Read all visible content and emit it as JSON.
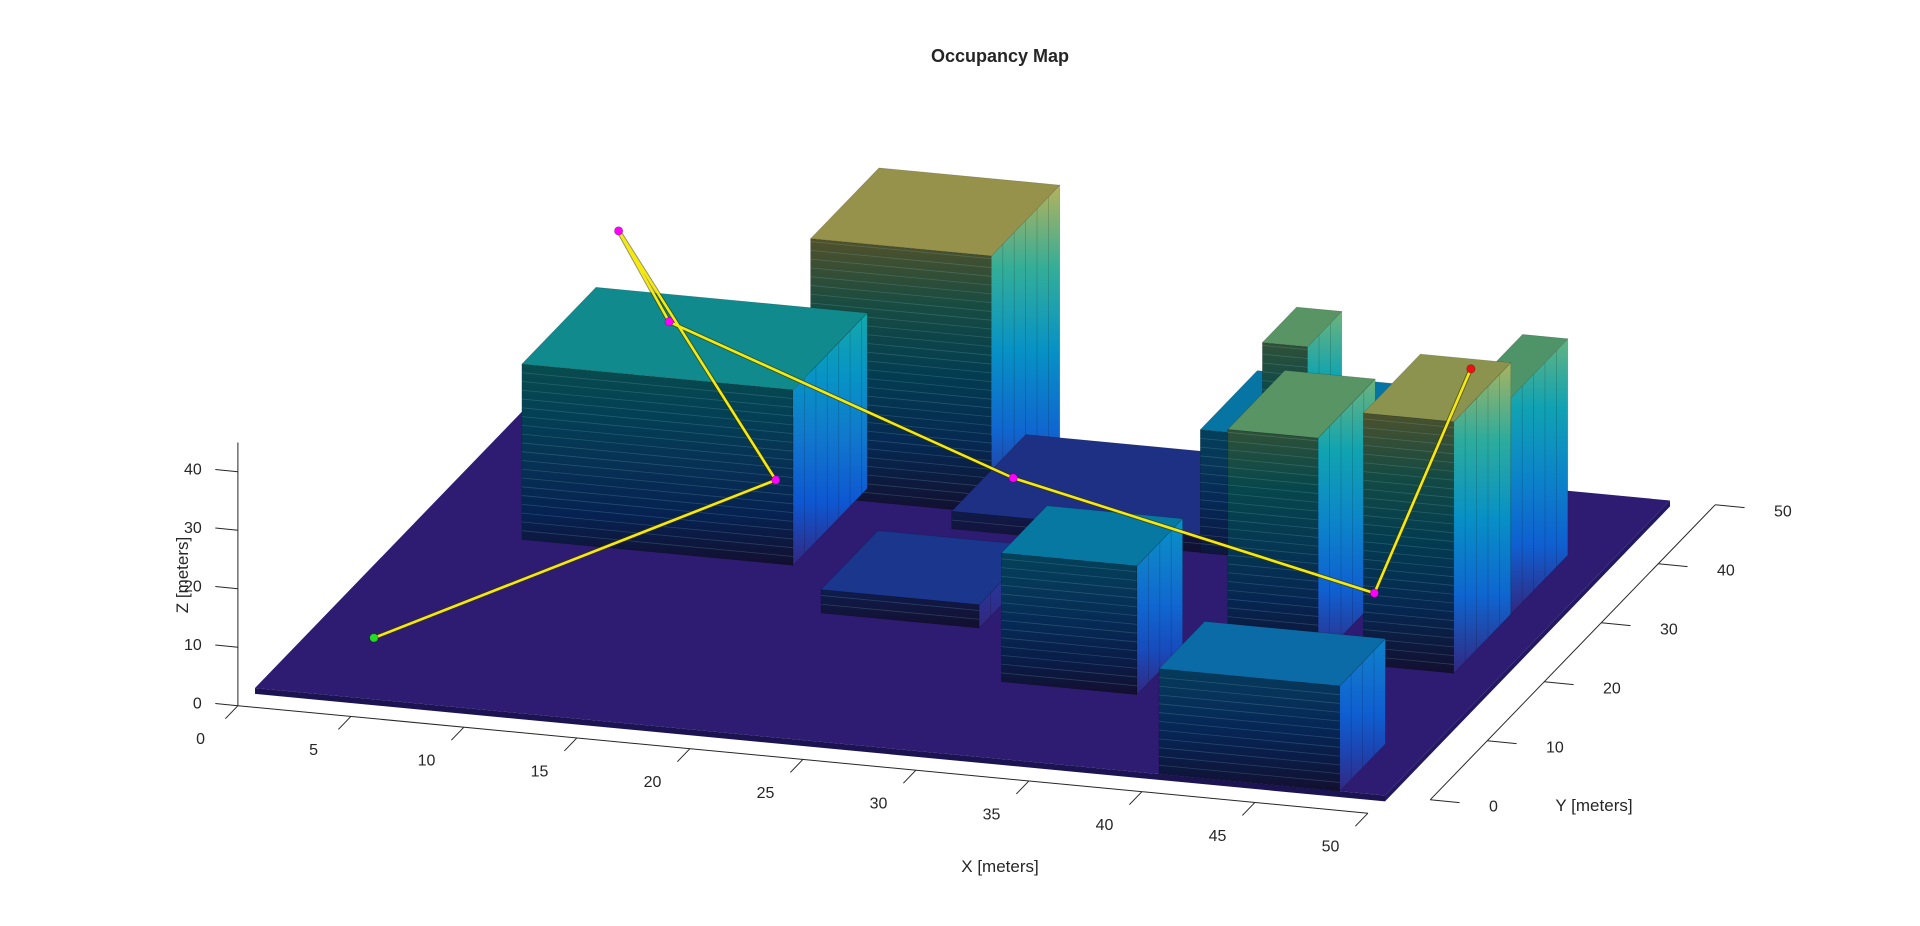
{
  "chart_data": {
    "type": "3d-occupancy-map",
    "title": "Occupancy Map",
    "xlabel": "X [meters]",
    "ylabel": "Y [meters]",
    "zlabel": "Z [meters]",
    "xlim": [
      0,
      50
    ],
    "ylim": [
      0,
      50
    ],
    "zlim": [
      0,
      45
    ],
    "xticks": [
      "0",
      "5",
      "10",
      "15",
      "20",
      "25",
      "30",
      "35",
      "40",
      "45",
      "50"
    ],
    "yticks": [
      "0",
      "10",
      "20",
      "30",
      "40",
      "50"
    ],
    "zticks": [
      "0",
      "10",
      "20",
      "30",
      "40"
    ],
    "ground": {
      "x": [
        0,
        50
      ],
      "y": [
        0,
        50
      ],
      "z": [
        -1,
        0
      ]
    },
    "obstacles": [
      {
        "x": [
          5,
          17
        ],
        "y": [
          27,
          40
        ],
        "z": [
          0,
          30
        ]
      },
      {
        "x": [
          15,
          23
        ],
        "y": [
          38,
          50
        ],
        "z": [
          0,
          44
        ]
      },
      {
        "x": [
          20,
          27
        ],
        "y": [
          20,
          30
        ],
        "z": [
          0,
          4
        ]
      },
      {
        "x": [
          22,
          35
        ],
        "y": [
          35,
          48
        ],
        "z": [
          0,
          3
        ]
      },
      {
        "x": [
          30,
          36
        ],
        "y": [
          12,
          20
        ],
        "z": [
          0,
          22
        ]
      },
      {
        "x": [
          33,
          42
        ],
        "y": [
          35,
          45
        ],
        "z": [
          0,
          21
        ]
      },
      {
        "x": [
          36,
          38
        ],
        "y": [
          34,
          40
        ],
        "z": [
          0,
          38
        ]
      },
      {
        "x": [
          38,
          42
        ],
        "y": [
          20,
          30
        ],
        "z": [
          0,
          38
        ]
      },
      {
        "x": [
          40,
          48
        ],
        "y": [
          0,
          8
        ],
        "z": [
          0,
          18
        ]
      },
      {
        "x": [
          44,
          48
        ],
        "y": [
          20,
          30
        ],
        "z": [
          0,
          43
        ]
      },
      {
        "x": [
          46,
          48
        ],
        "y": [
          30,
          40
        ],
        "z": [
          0,
          37
        ]
      }
    ],
    "path": {
      "color": "#f5e90e",
      "waypoints": [
        {
          "x": 4,
          "y": 5,
          "z": 5
        },
        {
          "x": 18,
          "y": 20,
          "z": 22
        },
        {
          "x": 6,
          "y": 40,
          "z": 40
        },
        {
          "x": 10,
          "y": 33,
          "z": 33
        },
        {
          "x": 28,
          "y": 22,
          "z": 24
        },
        {
          "x": 46,
          "y": 14,
          "z": 19
        },
        {
          "x": 48,
          "y": 23,
          "z": 49
        }
      ],
      "start_color": "#22dd22",
      "goal_color": "#ee1111",
      "waypoint_color": "#ff00ff"
    },
    "colormap": "parula",
    "grid": false
  }
}
